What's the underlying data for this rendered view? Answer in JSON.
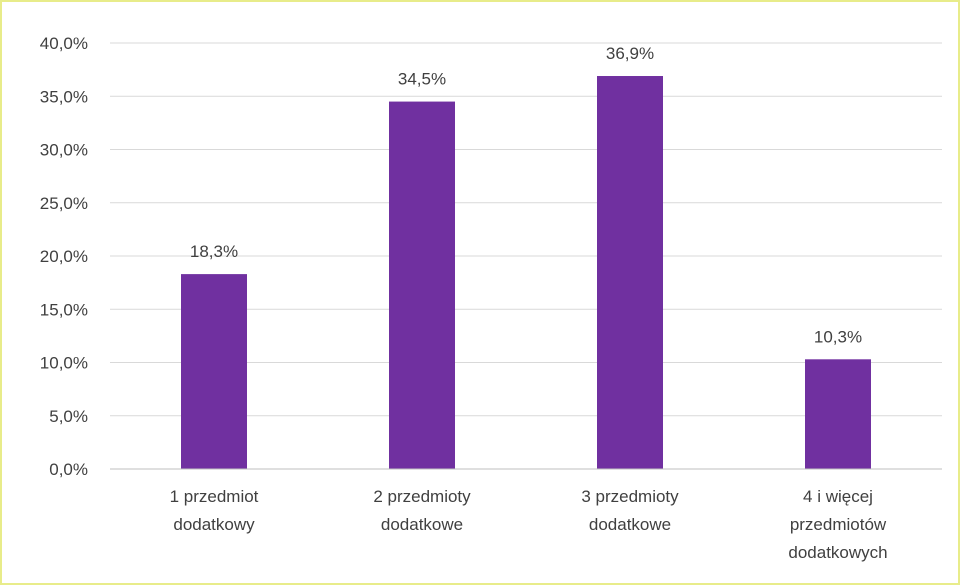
{
  "chart_data": {
    "type": "bar",
    "categories": [
      [
        "1 przedmiot",
        "dodatkowy"
      ],
      [
        "2 przedmioty",
        "dodatkowe"
      ],
      [
        "3 przedmioty",
        "dodatkowe"
      ],
      [
        "4 i więcej",
        "przedmiotów",
        "dodatkowych"
      ]
    ],
    "values": [
      18.3,
      34.5,
      36.9,
      10.3
    ],
    "data_labels": [
      "18,3%",
      "34,5%",
      "36,9%",
      "10,3%"
    ],
    "yticks": [
      0,
      5,
      10,
      15,
      20,
      25,
      30,
      35,
      40
    ],
    "ytick_labels": [
      "0,0%",
      "5,0%",
      "10,0%",
      "15,0%",
      "20,0%",
      "25,0%",
      "30,0%",
      "35,0%",
      "40,0%"
    ],
    "ylim": [
      0,
      40
    ],
    "grid": true,
    "bar_color": "#7030a0",
    "title": "",
    "xlabel": "",
    "ylabel": ""
  }
}
